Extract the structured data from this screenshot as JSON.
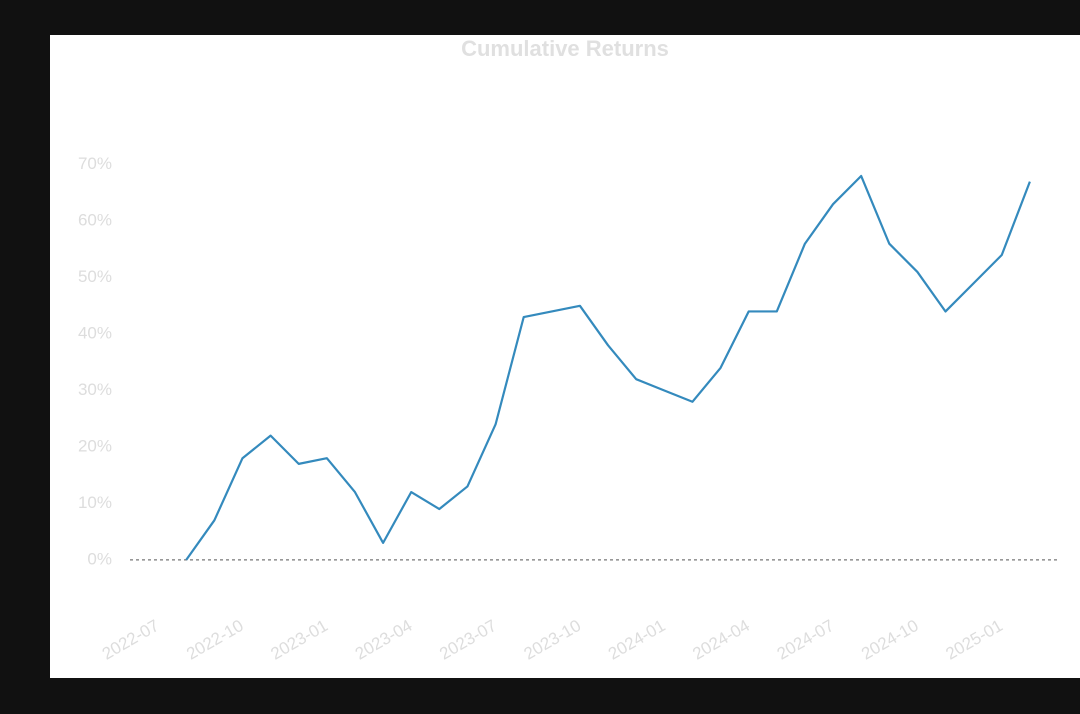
{
  "chart_data": {
    "type": "line",
    "title": "Cumulative Returns",
    "x": [
      "2022-08",
      "2022-09",
      "2022-10",
      "2022-11",
      "2022-12",
      "2023-01",
      "2023-02",
      "2023-03",
      "2023-04",
      "2023-05",
      "2023-06",
      "2023-07",
      "2023-08",
      "2023-09",
      "2023-10",
      "2023-11",
      "2023-12",
      "2024-01",
      "2024-02",
      "2024-03",
      "2024-04",
      "2024-05",
      "2024-06",
      "2024-07",
      "2024-08",
      "2024-09",
      "2024-10",
      "2024-11",
      "2024-12",
      "2025-01",
      "2025-02"
    ],
    "series": [
      {
        "color": "#348abd",
        "values": [
          0,
          7,
          18,
          22,
          17,
          18,
          12,
          3,
          12,
          9,
          13,
          24,
          43,
          44,
          45,
          38,
          32,
          30,
          28,
          34,
          44,
          44,
          56,
          63,
          68,
          56,
          51,
          44,
          49,
          54,
          67
        ]
      }
    ],
    "xlim": [
      "2022-06",
      "2025-03"
    ],
    "xticks": [
      "2022-07",
      "2022-10",
      "2023-01",
      "2023-04",
      "2023-07",
      "2023-10",
      "2024-01",
      "2024-04",
      "2024-07",
      "2024-10",
      "2025-01"
    ],
    "ylim": [
      -8,
      85
    ],
    "yticks": [
      {
        "value": 0,
        "label": "0%"
      },
      {
        "value": 10,
        "label": "10%"
      },
      {
        "value": 20,
        "label": "20%"
      },
      {
        "value": 30,
        "label": "30%"
      },
      {
        "value": 40,
        "label": "40%"
      },
      {
        "value": 50,
        "label": "50%"
      },
      {
        "value": 60,
        "label": "60%"
      },
      {
        "value": 70,
        "label": "70%"
      }
    ],
    "baseline": 0
  }
}
